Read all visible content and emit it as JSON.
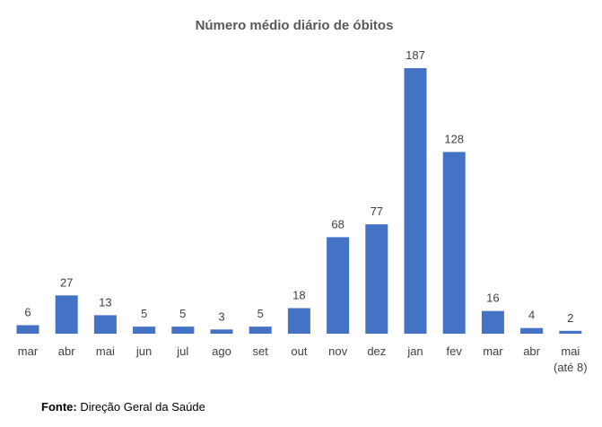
{
  "chart_data": {
    "type": "bar",
    "title": "Número médio diário de óbitos",
    "categories": [
      "mar",
      "abr",
      "mai",
      "jun",
      "jul",
      "ago",
      "set",
      "out",
      "nov",
      "dez",
      "jan",
      "fev",
      "mar",
      "abr",
      "mai\n(até 8)"
    ],
    "values": [
      6,
      27,
      13,
      5,
      5,
      3,
      5,
      18,
      68,
      77,
      187,
      128,
      16,
      4,
      2
    ],
    "xlabel": "",
    "ylabel": "",
    "ylim": [
      0,
      187
    ],
    "grid": false,
    "legend": "none",
    "bar_color": "#4472C4"
  },
  "source": {
    "label": "Fonte:",
    "text": " Direção Geral da Saúde"
  }
}
